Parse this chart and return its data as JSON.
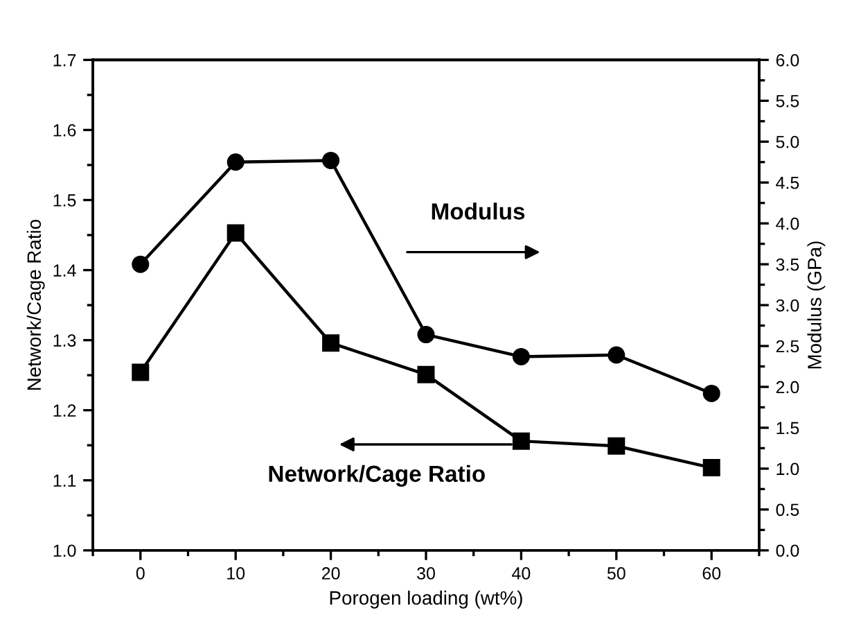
{
  "chart_data": {
    "type": "line",
    "xlabel": "Porogen loading (wt%)",
    "ylabel": "Network/Cage Ratio",
    "y2label": "Modulus (GPa)",
    "x": [
      0,
      10,
      20,
      30,
      40,
      50,
      60
    ],
    "series": [
      {
        "color": "#000000",
        "marker": "square",
        "values": [
          1.254,
          1.453,
          1.296,
          1.251,
          1.156,
          1.149,
          1.118
        ]
      },
      {
        "color": "#000000",
        "marker": "circle",
        "axis": "y2",
        "values": [
          3.5,
          4.75,
          4.77,
          2.64,
          2.37,
          2.39,
          1.92
        ]
      }
    ],
    "annotations": [
      "Modulus",
      "Network/Cage Ratio"
    ],
    "xlim": [
      -5,
      65
    ],
    "xticks": [
      0,
      10,
      20,
      30,
      40,
      50,
      60
    ],
    "ylim": [
      1.0,
      1.7
    ],
    "yticks": [
      {
        "value": 1,
        "label": "1.0"
      },
      1.1,
      1.2,
      1.3,
      1.4,
      1.5,
      1.6,
      1.7
    ],
    "y2lim": [
      0,
      6
    ],
    "y2ticks": [
      {
        "value": 0,
        "label": "0.0"
      },
      0.5,
      {
        "value": 1,
        "label": "1.0"
      },
      1.5,
      {
        "value": 2,
        "label": "2.0"
      },
      2.5,
      {
        "value": 3,
        "label": "3.0"
      },
      3.5,
      {
        "value": 4,
        "label": "4.0"
      },
      4.5,
      {
        "value": 5,
        "label": "5.0"
      },
      5.5,
      {
        "value": 6,
        "label": "6.0"
      }
    ],
    "grid": false,
    "legend": false,
    "line_style": "solid"
  }
}
